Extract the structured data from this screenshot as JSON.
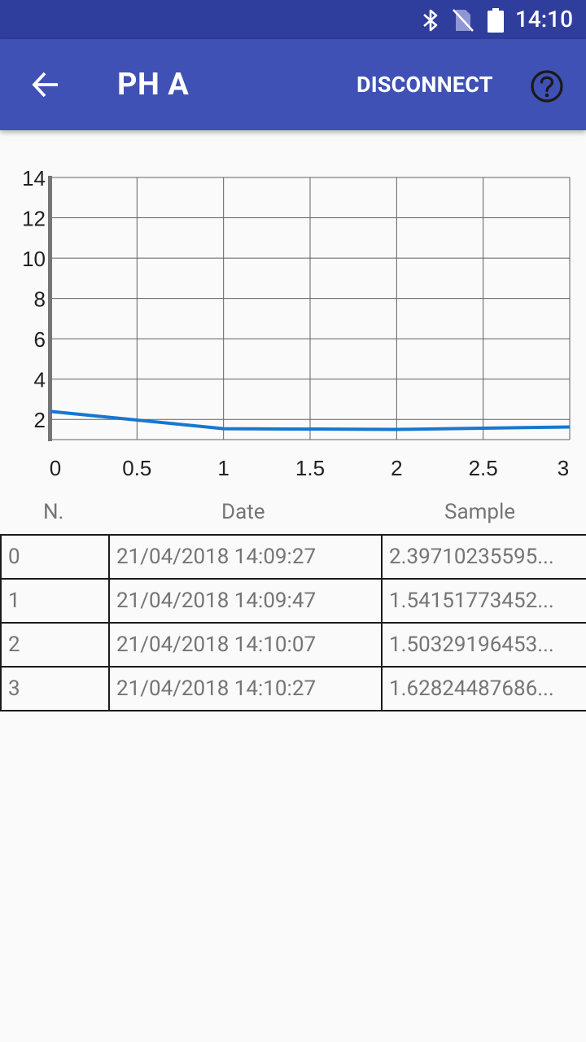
{
  "status_bar": {
    "time": "14:10",
    "icons": [
      "bluetooth-icon",
      "no-sim-icon",
      "battery-icon"
    ]
  },
  "app_bar": {
    "title": "PH A",
    "disconnect_label": "DISCONNECT",
    "back_icon": "arrow-back-icon",
    "help_icon": "help-circle-icon"
  },
  "colors": {
    "status_bar": "#2f3d9c",
    "app_bar": "#3f51b5",
    "series_line": "#1777d0"
  },
  "chart_data": {
    "type": "line",
    "x": [
      0,
      1,
      2,
      3
    ],
    "series": [
      {
        "values": [
          2.39710235595,
          1.54151773452,
          1.50329196453,
          1.62824487686
        ]
      }
    ],
    "xlim": [
      0,
      3
    ],
    "ylim": [
      1,
      14
    ],
    "xticks": [
      0,
      0.5,
      1,
      1.5,
      2,
      2.5,
      3
    ],
    "yticks": [
      2,
      4,
      6,
      8,
      10,
      12,
      14
    ],
    "grid": true
  },
  "table": {
    "headers": {
      "n": "N.",
      "date": "Date",
      "sample": "Sample"
    },
    "rows": [
      {
        "n": "0",
        "date": "21/04/2018 14:09:27",
        "sample": "2.39710235595..."
      },
      {
        "n": "1",
        "date": "21/04/2018 14:09:47",
        "sample": "1.54151773452..."
      },
      {
        "n": "2",
        "date": "21/04/2018 14:10:07",
        "sample": "1.50329196453..."
      },
      {
        "n": "3",
        "date": "21/04/2018 14:10:27",
        "sample": "1.62824487686..."
      }
    ]
  }
}
